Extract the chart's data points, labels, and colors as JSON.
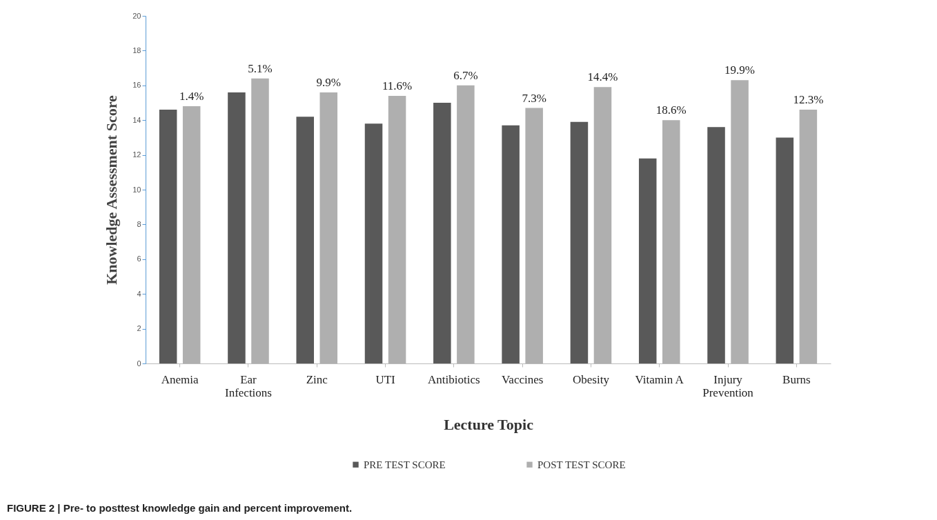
{
  "chart_data": {
    "type": "bar",
    "xlabel": "Lecture Topic",
    "ylabel": "Knowledge Assessment Score",
    "categories": [
      "Anemia",
      "Ear Infections",
      "Zinc",
      "UTI",
      "Antibiotics",
      "Vaccines",
      "Obesity",
      "Vitamin A",
      "Injury Prevention",
      "Burns"
    ],
    "series": [
      {
        "name": "PRE TEST  SCORE",
        "color": "#595959",
        "values": [
          14.6,
          15.6,
          14.2,
          13.8,
          15.0,
          13.7,
          13.9,
          11.8,
          13.6,
          13.0
        ]
      },
      {
        "name": "POST TEST SCORE",
        "color": "#afafaf",
        "values": [
          14.8,
          16.4,
          15.6,
          15.4,
          16.0,
          14.7,
          15.9,
          14.0,
          16.3,
          14.6
        ]
      }
    ],
    "ylim": [
      0,
      20
    ],
    "yticks": [
      0,
      2,
      4,
      6,
      8,
      10,
      12,
      14,
      16,
      18,
      20
    ],
    "grid": false,
    "legend": "bottom",
    "annotations": [
      {
        "text": "1.4%",
        "x": "Anemia",
        "y": 14.8
      },
      {
        "text": "5.1%",
        "x": "Ear Infections",
        "y": 16.4
      },
      {
        "text": "9.9%",
        "x": "Zinc",
        "y": 15.6
      },
      {
        "text": "11.6%",
        "x": "UTI",
        "y": 15.4
      },
      {
        "text": "6.7%",
        "x": "Antibiotics",
        "y": 16.0
      },
      {
        "text": "7.3%",
        "x": "Vaccines",
        "y": 14.7
      },
      {
        "text": "14.4%",
        "x": "Obesity",
        "y": 15.9
      },
      {
        "text": "18.6%",
        "x": "Vitamin A",
        "y": 14.0
      },
      {
        "text": "19.9%",
        "x": "Injury Prevention",
        "y": 16.3
      },
      {
        "text": "12.3%",
        "x": "Burns",
        "y": 14.6
      },
      "FIGURE 2 | Pre- to posttest knowledge gain and percent improvement."
    ]
  }
}
